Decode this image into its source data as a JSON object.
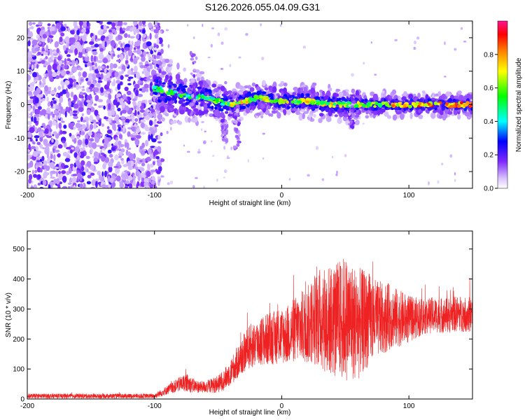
{
  "title": "S126.2026.055.04.09.G31",
  "colors": {
    "snr_line": "#ee2222",
    "axis": "#000000",
    "colormap": [
      "#ffffff",
      "#7f2aff",
      "#0000ff",
      "#00ffff",
      "#00ff00",
      "#ffff00",
      "#ff8000",
      "#ff0000",
      "#ff1493"
    ]
  },
  "chart_data": [
    {
      "type": "heatmap",
      "title": "",
      "xlabel": "Height of straight line (km)",
      "ylabel": "Frequency (Hz)",
      "xlim": [
        -200,
        150
      ],
      "ylim": [
        -25,
        25
      ],
      "x_ticks": [
        -200,
        -100,
        0,
        100
      ],
      "x_tick_labels": [
        "-200",
        "-100",
        "0",
        "100"
      ],
      "y_ticks": [
        -20,
        -10,
        0,
        10,
        20
      ],
      "y_tick_labels": [
        "-20",
        "-10",
        "0",
        "10",
        "20"
      ],
      "colorbar": {
        "label": "Normalized spectral amplitude",
        "range": [
          0,
          1
        ],
        "ticks": [
          0.0,
          0.2,
          0.4,
          0.6,
          0.8
        ],
        "tick_labels": [
          "0.0",
          "0.2",
          "0.4",
          "0.6",
          "0.8"
        ]
      },
      "features": {
        "noise_region_x": [
          -200,
          -100
        ],
        "signal_band_center_hz": [
          [
            -100,
            5
          ],
          [
            -80,
            3
          ],
          [
            -60,
            2
          ],
          [
            -40,
            0
          ],
          [
            -20,
            2
          ],
          [
            0,
            1
          ],
          [
            20,
            1
          ],
          [
            40,
            0
          ],
          [
            60,
            0
          ],
          [
            80,
            0
          ],
          [
            100,
            0
          ],
          [
            120,
            0
          ],
          [
            150,
            0
          ]
        ]
      }
    },
    {
      "type": "line",
      "title": "",
      "xlabel": "Height of straight line (km)",
      "ylabel": "SNR (10 * v/v)",
      "xlim": [
        -200,
        150
      ],
      "ylim": [
        0,
        560
      ],
      "x_ticks": [
        -200,
        -100,
        0,
        100
      ],
      "x_tick_labels": [
        "-200",
        "-100",
        "0",
        "100"
      ],
      "y_ticks": [
        0,
        100,
        200,
        300,
        400,
        500
      ],
      "y_tick_labels": [
        "0",
        "100",
        "200",
        "300",
        "400",
        "500"
      ],
      "series": [
        {
          "name": "SNR",
          "color": "#ee2222",
          "x": [
            -200,
            -150,
            -100,
            -95,
            -90,
            -85,
            -80,
            -75,
            -70,
            -65,
            -60,
            -55,
            -50,
            -45,
            -40,
            -35,
            -30,
            -25,
            -20,
            -15,
            -10,
            -5,
            0,
            5,
            10,
            15,
            20,
            25,
            30,
            35,
            40,
            45,
            50,
            55,
            60,
            65,
            70,
            75,
            80,
            85,
            90,
            95,
            100,
            105,
            110,
            115,
            120,
            125,
            130,
            135,
            140,
            145,
            150
          ],
          "mean": [
            10,
            10,
            10,
            20,
            30,
            40,
            50,
            55,
            45,
            40,
            40,
            45,
            50,
            65,
            90,
            120,
            150,
            175,
            185,
            195,
            200,
            205,
            210,
            215,
            230,
            240,
            245,
            265,
            270,
            265,
            260,
            265,
            270,
            260,
            250,
            260,
            270,
            265,
            270,
            275,
            270,
            268,
            265,
            270,
            275,
            278,
            280,
            280,
            278,
            282,
            285,
            282,
            280
          ],
          "amp": [
            8,
            8,
            8,
            12,
            15,
            20,
            25,
            30,
            25,
            20,
            20,
            25,
            30,
            35,
            45,
            55,
            65,
            75,
            80,
            85,
            90,
            90,
            95,
            100,
            110,
            120,
            130,
            150,
            170,
            180,
            190,
            200,
            210,
            200,
            190,
            170,
            150,
            130,
            120,
            110,
            100,
            90,
            80,
            70,
            65,
            60,
            60,
            60,
            60,
            60,
            60,
            60,
            60
          ]
        }
      ]
    }
  ]
}
